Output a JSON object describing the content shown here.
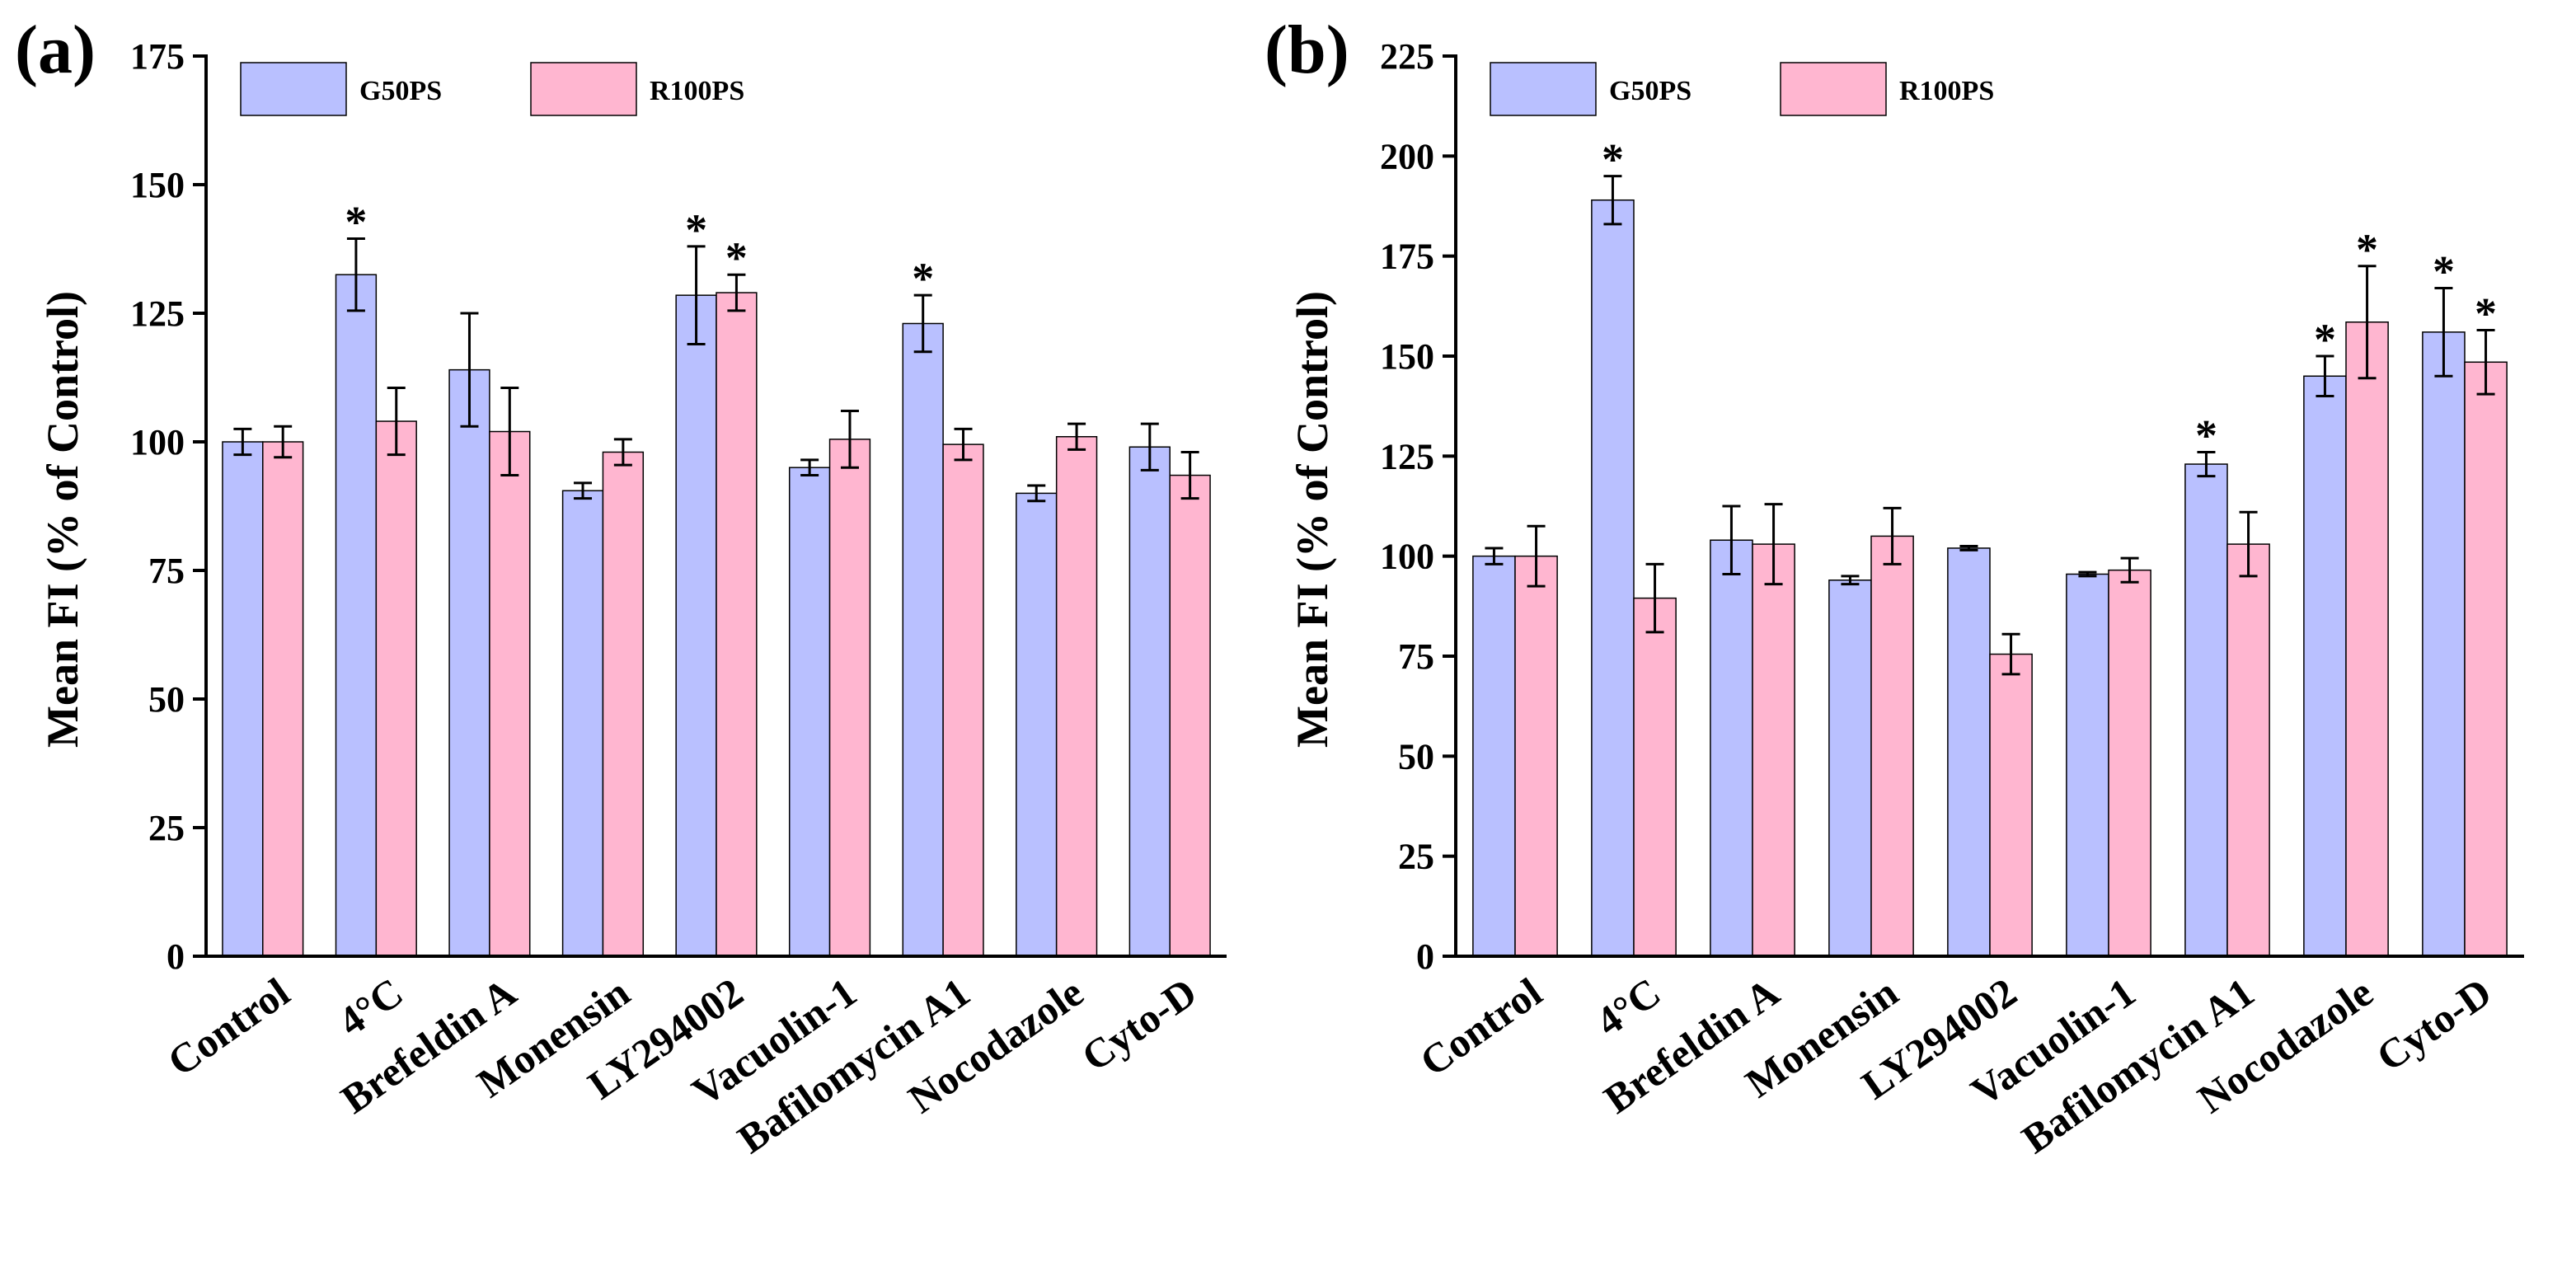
{
  "chart_data": [
    {
      "panel": "(a)",
      "type": "bar",
      "ylabel": "Mean FI  (% of Control)",
      "ylim": [
        0,
        175
      ],
      "yticks": [
        0,
        25,
        50,
        75,
        100,
        125,
        150,
        175
      ],
      "categories": [
        "Control",
        "4°C",
        "Brefeldin A",
        "Monensin",
        "LY294002",
        "Vacuolin-1",
        "Bafilomycin A1",
        "Nocodazole",
        "Cyto-D"
      ],
      "legend_position": "top-left",
      "series": [
        {
          "name": "G50PS",
          "color": "#b9c0ff",
          "values": [
            100,
            132.5,
            114,
            90.5,
            128.5,
            95,
            123,
            90,
            99
          ],
          "errors": [
            2.5,
            7,
            11,
            1.5,
            9.5,
            1.5,
            5.5,
            1.5,
            4.5
          ],
          "significant": [
            false,
            true,
            false,
            false,
            true,
            false,
            true,
            false,
            false
          ]
        },
        {
          "name": "R100PS",
          "color": "#ffb6d0",
          "values": [
            100,
            104,
            102,
            98,
            129,
            100.5,
            99.5,
            101,
            93.5
          ],
          "errors": [
            3,
            6.5,
            8.5,
            2.5,
            3.5,
            5.5,
            3,
            2.5,
            4.5
          ],
          "significant": [
            false,
            false,
            false,
            false,
            true,
            false,
            false,
            false,
            false
          ]
        }
      ],
      "significance_marker": "*"
    },
    {
      "panel": "(b)",
      "type": "bar",
      "ylabel": "Mean FI  (% of Control)",
      "ylim": [
        0,
        225
      ],
      "yticks": [
        0,
        25,
        50,
        75,
        100,
        125,
        150,
        175,
        200,
        225
      ],
      "categories": [
        "Control",
        "4°C",
        "Brefeldin A",
        "Monensin",
        "LY294002",
        "Vacuolin-1",
        "Bafilomycin A1",
        "Nocodazole",
        "Cyto-D"
      ],
      "legend_position": "top-left",
      "series": [
        {
          "name": "G50PS",
          "color": "#b9c0ff",
          "values": [
            100,
            189,
            104,
            94,
            102,
            95.5,
            123,
            145,
            156
          ],
          "errors": [
            2,
            6,
            8.5,
            1,
            0.5,
            0.5,
            3,
            5,
            11
          ],
          "significant": [
            false,
            true,
            false,
            false,
            false,
            false,
            true,
            true,
            true
          ]
        },
        {
          "name": "R100PS",
          "color": "#ffb6d0",
          "values": [
            100,
            89.5,
            103,
            105,
            75.5,
            96.5,
            103,
            158.5,
            148.5
          ],
          "errors": [
            7.5,
            8.5,
            10,
            7,
            5,
            3,
            8,
            14,
            8
          ],
          "significant": [
            false,
            false,
            false,
            false,
            false,
            false,
            false,
            true,
            true
          ]
        }
      ],
      "significance_marker": "*"
    }
  ]
}
